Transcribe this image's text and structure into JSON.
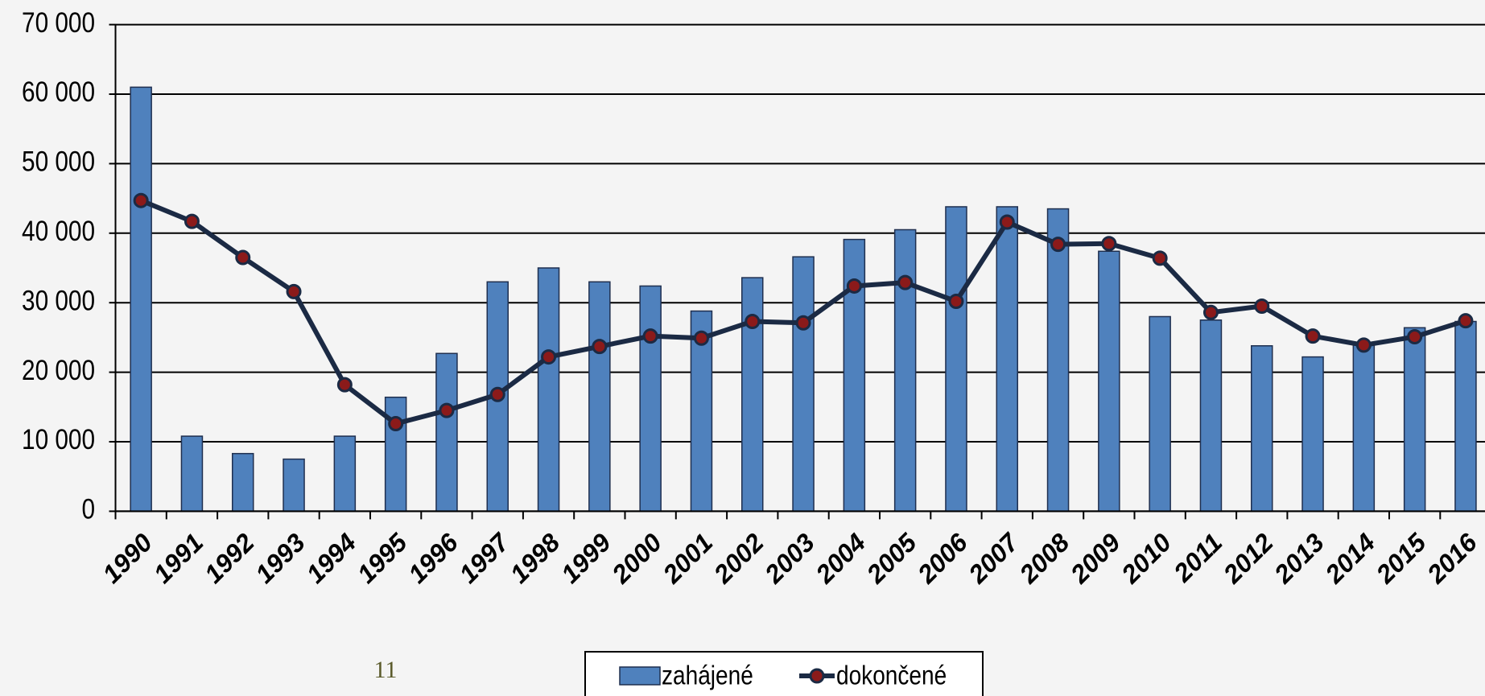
{
  "chart_data": {
    "type": "bar_line",
    "categories": [
      "1990",
      "1991",
      "1992",
      "1993",
      "1994",
      "1995",
      "1996",
      "1997",
      "1998",
      "1999",
      "2000",
      "2001",
      "2002",
      "2003",
      "2004",
      "2005",
      "2006",
      "2007",
      "2008",
      "2009",
      "2010",
      "2011",
      "2012",
      "2013",
      "2014",
      "2015",
      "2016"
    ],
    "series": [
      {
        "name": "zahájené",
        "type": "bar",
        "color": "#4f81bd",
        "values": [
          61000,
          10800,
          8300,
          7500,
          10800,
          16400,
          22700,
          33000,
          35000,
          33000,
          32400,
          28800,
          33600,
          36600,
          39100,
          40500,
          43800,
          43800,
          43500,
          37400,
          28000,
          27500,
          23800,
          22200,
          24000,
          26400,
          27300
        ]
      },
      {
        "name": "dokončené",
        "type": "line",
        "color": "#1b2a44",
        "marker_color": "#8b1a1a",
        "values": [
          44700,
          41700,
          36500,
          31600,
          18200,
          12600,
          14500,
          16800,
          22200,
          23700,
          25200,
          24900,
          27300,
          27100,
          32400,
          32900,
          30200,
          41600,
          38400,
          38500,
          36400,
          28600,
          29500,
          25200,
          23900,
          25100,
          27400
        ]
      }
    ],
    "ylim": [
      0,
      70000
    ],
    "yticks": [
      {
        "value": 0,
        "label": "0"
      },
      {
        "value": 10000,
        "label": "10 000"
      },
      {
        "value": 20000,
        "label": "20 000"
      },
      {
        "value": 30000,
        "label": "30 000"
      },
      {
        "value": 40000,
        "label": "40 000"
      },
      {
        "value": 50000,
        "label": "50 000"
      },
      {
        "value": 60000,
        "label": "60 000"
      },
      {
        "value": 70000,
        "label": "70 000"
      }
    ],
    "grid": true,
    "legend": "bottom",
    "page_number": "11"
  }
}
